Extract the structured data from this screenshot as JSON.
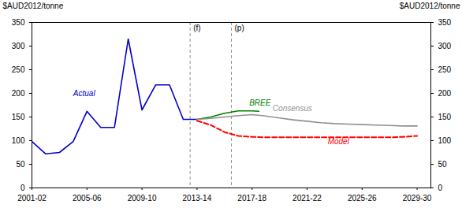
{
  "chart_data": {
    "type": "line",
    "xlim": [
      2001,
      2030
    ],
    "xticks": [
      {
        "value": 2001,
        "label": "2001-02"
      },
      {
        "value": 2005,
        "label": "2005-06"
      },
      {
        "value": 2009,
        "label": "2009-10"
      },
      {
        "value": 2013,
        "label": "2013-14"
      },
      {
        "value": 2017,
        "label": "2017-18"
      },
      {
        "value": 2021,
        "label": "2021-22"
      },
      {
        "value": 2025,
        "label": "2025-26"
      },
      {
        "value": 2029,
        "label": "2029-30"
      }
    ],
    "ylim": [
      0,
      350
    ],
    "yticks": [
      0,
      50,
      100,
      150,
      200,
      250,
      300,
      350
    ],
    "y2lim": [
      0,
      350
    ],
    "y2ticks": [
      0,
      50,
      100,
      150,
      200,
      250,
      300,
      350
    ],
    "ylabel": "$AUD2012/tonne",
    "y2label": "$AUD2012/tonne",
    "grid": false,
    "series": [
      {
        "name": "Actual",
        "color": "#0000cc",
        "line_style": "solid",
        "x": [
          2001,
          2002,
          2003,
          2004,
          2005,
          2006,
          2007,
          2008,
          2009,
          2010,
          2011,
          2012,
          2013
        ],
        "values": [
          98,
          72,
          75,
          98,
          162,
          128,
          128,
          315,
          165,
          218,
          218,
          145,
          145
        ],
        "label_x": 2004.0,
        "label_y": 195
      },
      {
        "name": "BREE",
        "color": "#008000",
        "line_style": "solid",
        "x": [
          2013,
          2014,
          2015,
          2016,
          2017,
          2017.5
        ],
        "values": [
          145,
          150,
          158,
          163,
          163,
          162
        ],
        "label_x": 2016.8,
        "label_y": 175
      },
      {
        "name": "Consensus",
        "color": "#909090",
        "line_style": "solid",
        "x": [
          2013,
          2014,
          2015,
          2016,
          2017,
          2018,
          2019,
          2020,
          2021,
          2022,
          2023,
          2024,
          2025,
          2026,
          2027,
          2028,
          2029
        ],
        "values": [
          145,
          147,
          150,
          153,
          155,
          152,
          148,
          144,
          141,
          138,
          136,
          135,
          134,
          133,
          132,
          131,
          131
        ],
        "label_x": 2018.5,
        "label_y": 162
      },
      {
        "name": "Model",
        "color": "#ff0000",
        "line_style": "dashed",
        "x": [
          2013,
          2014,
          2015,
          2016,
          2017,
          2018,
          2019,
          2020,
          2021,
          2022,
          2023,
          2024,
          2025,
          2026,
          2027,
          2028,
          2029
        ],
        "values": [
          142,
          133,
          118,
          110,
          108,
          107,
          107,
          107,
          107,
          107,
          107,
          107,
          107,
          107,
          107,
          108,
          110
        ],
        "label_x": 2022.5,
        "label_y": 93
      }
    ],
    "vlines": [
      {
        "x": 2012.5,
        "label": "(f)"
      },
      {
        "x": 2015.5,
        "label": "(p)"
      }
    ]
  }
}
